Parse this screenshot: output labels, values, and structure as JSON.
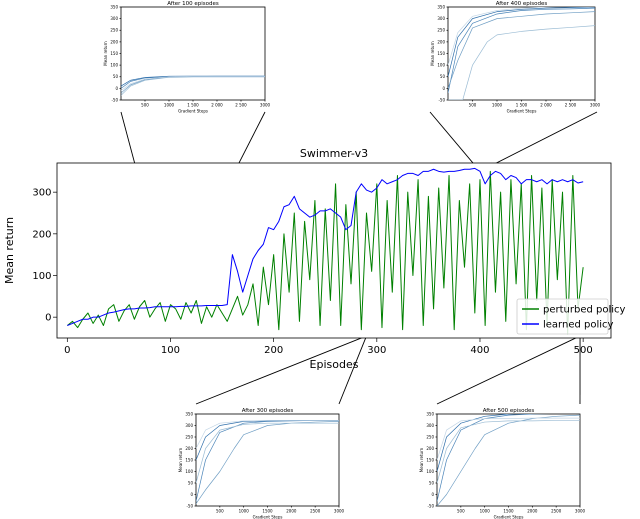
{
  "chart_data": [
    {
      "id": "main",
      "type": "line",
      "title": "Swimmer-v3",
      "xlabel": "Episodes",
      "ylabel": "Mean return",
      "xlim": [
        -10,
        527
      ],
      "ylim": [
        -50,
        370
      ],
      "xticks": [
        0,
        100,
        200,
        300,
        400,
        500
      ],
      "yticks": [
        0,
        100,
        200,
        300
      ],
      "grid": false,
      "legend": "bottom-right",
      "series": [
        {
          "name": "perturbed policy",
          "color": "#008000",
          "x": [
            0,
            5,
            10,
            15,
            20,
            25,
            30,
            35,
            40,
            45,
            50,
            55,
            60,
            65,
            70,
            75,
            80,
            85,
            90,
            95,
            100,
            105,
            110,
            115,
            120,
            125,
            130,
            135,
            140,
            145,
            150,
            155,
            160,
            165,
            170,
            175,
            180,
            185,
            190,
            195,
            200,
            205,
            210,
            215,
            220,
            225,
            230,
            235,
            240,
            245,
            250,
            255,
            260,
            265,
            270,
            275,
            280,
            285,
            290,
            295,
            300,
            305,
            310,
            315,
            320,
            325,
            330,
            335,
            340,
            345,
            350,
            355,
            360,
            365,
            370,
            375,
            380,
            385,
            390,
            395,
            400,
            405,
            410,
            415,
            420,
            425,
            430,
            435,
            440,
            445,
            450,
            455,
            460,
            465,
            470,
            475,
            480,
            485,
            490,
            495,
            500
          ],
          "values": [
            -20,
            -10,
            -25,
            -5,
            10,
            -15,
            5,
            -20,
            20,
            30,
            -10,
            15,
            30,
            -5,
            25,
            40,
            0,
            20,
            35,
            -10,
            30,
            20,
            -5,
            35,
            10,
            40,
            -15,
            25,
            0,
            30,
            10,
            -10,
            20,
            50,
            5,
            30,
            80,
            -20,
            120,
            30,
            150,
            -30,
            200,
            60,
            250,
            -10,
            230,
            90,
            280,
            -20,
            260,
            40,
            320,
            -20,
            270,
            80,
            300,
            -30,
            250,
            110,
            320,
            -25,
            280,
            60,
            340,
            -30,
            300,
            100,
            330,
            -20,
            290,
            20,
            310,
            70,
            340,
            -30,
            280,
            120,
            320,
            10,
            330,
            -20,
            350,
            60,
            300,
            -10,
            330,
            80,
            320,
            -30,
            340,
            40,
            310,
            -20,
            330,
            90,
            300,
            -40,
            340,
            20,
            120
          ]
        },
        {
          "name": "learned policy",
          "color": "#0000ff",
          "x": [
            0,
            5,
            10,
            15,
            20,
            25,
            30,
            35,
            40,
            45,
            50,
            55,
            60,
            65,
            70,
            75,
            80,
            85,
            90,
            95,
            100,
            105,
            110,
            115,
            120,
            125,
            130,
            135,
            140,
            145,
            150,
            155,
            160,
            165,
            170,
            175,
            180,
            185,
            190,
            195,
            200,
            205,
            210,
            215,
            220,
            225,
            230,
            235,
            240,
            245,
            250,
            255,
            260,
            265,
            270,
            275,
            280,
            285,
            290,
            295,
            300,
            305,
            310,
            315,
            320,
            325,
            330,
            335,
            340,
            345,
            350,
            355,
            360,
            365,
            370,
            375,
            380,
            385,
            390,
            395,
            400,
            405,
            410,
            415,
            420,
            425,
            430,
            435,
            440,
            445,
            450,
            455,
            460,
            465,
            470,
            475,
            480,
            485,
            490,
            495,
            500
          ],
          "values": [
            -20,
            -15,
            -10,
            -5,
            -5,
            0,
            0,
            5,
            10,
            12,
            15,
            18,
            20,
            20,
            22,
            22,
            23,
            25,
            25,
            25,
            25,
            25,
            26,
            26,
            27,
            27,
            27,
            28,
            28,
            28,
            28,
            30,
            150,
            110,
            60,
            100,
            140,
            160,
            175,
            215,
            210,
            230,
            265,
            270,
            290,
            260,
            250,
            240,
            245,
            255,
            255,
            260,
            250,
            240,
            210,
            220,
            300,
            320,
            305,
            300,
            310,
            330,
            320,
            325,
            330,
            340,
            345,
            345,
            340,
            350,
            350,
            355,
            350,
            348,
            350,
            350,
            352,
            355,
            355,
            357,
            350,
            320,
            340,
            350,
            345,
            330,
            340,
            335,
            320,
            330,
            330,
            325,
            330,
            320,
            330,
            325,
            330,
            325,
            330,
            322,
            325
          ]
        }
      ]
    },
    {
      "id": "inset-100",
      "type": "line",
      "title": "After 100 episodes",
      "xlabel": "Gradient Steps",
      "ylabel": "Mean return",
      "xlim": [
        0,
        3000
      ],
      "ylim": [
        -50,
        350
      ],
      "xticks": [
        500,
        1000,
        1500,
        2000,
        2500,
        3000
      ],
      "xtick_labels": [
        "500",
        "1000",
        "1 500",
        "2 000",
        "2 500",
        "3000"
      ],
      "yticks": [
        -50,
        0,
        50,
        100,
        150,
        200,
        250,
        300,
        350
      ],
      "series": [
        {
          "x": [
            0,
            200,
            500,
            1000,
            1500,
            2000,
            2500,
            3000
          ],
          "values": [
            -30,
            10,
            35,
            48,
            50,
            50,
            50,
            50
          ],
          "color": "#9bbcd4"
        },
        {
          "x": [
            0,
            200,
            500,
            1000,
            1500,
            2000,
            2500,
            3000
          ],
          "values": [
            -20,
            15,
            38,
            49,
            50,
            50,
            50,
            50
          ],
          "color": "#6f9ec4"
        },
        {
          "x": [
            0,
            200,
            500,
            1000,
            1500,
            2000,
            2500,
            3000
          ],
          "values": [
            0,
            30,
            45,
            50,
            51,
            52,
            52,
            52
          ],
          "color": "#4a84b8"
        },
        {
          "x": [
            0,
            200,
            500,
            1000,
            1500,
            2000,
            2500,
            3000
          ],
          "values": [
            10,
            35,
            47,
            52,
            53,
            53,
            53,
            53
          ],
          "color": "#2f6fab"
        },
        {
          "x": [
            0,
            200,
            500,
            1000,
            1500,
            2000,
            2500,
            3000
          ],
          "values": [
            -10,
            20,
            40,
            50,
            52,
            52,
            52,
            52
          ],
          "color": "#c3d6e6"
        }
      ]
    },
    {
      "id": "inset-400",
      "type": "line",
      "title": "After 400 episodes",
      "xlabel": "Gradient Steps",
      "ylabel": "Mean return",
      "xlim": [
        0,
        3000
      ],
      "ylim": [
        -50,
        350
      ],
      "xticks": [
        500,
        1000,
        1500,
        2000,
        2500,
        3000
      ],
      "xtick_labels": [
        "500",
        "1000",
        "1 500",
        "2 000",
        "2 500",
        "3000"
      ],
      "yticks": [
        -50,
        0,
        50,
        100,
        150,
        200,
        250,
        300,
        350
      ],
      "series": [
        {
          "x": [
            0,
            200,
            500,
            1000,
            1500,
            2000,
            2500,
            3000
          ],
          "values": [
            50,
            220,
            300,
            330,
            340,
            345,
            348,
            350
          ],
          "color": "#2f6fab"
        },
        {
          "x": [
            0,
            200,
            500,
            1000,
            1500,
            2000,
            2500,
            3000
          ],
          "values": [
            -20,
            180,
            280,
            320,
            335,
            340,
            342,
            345
          ],
          "color": "#4a84b8"
        },
        {
          "x": [
            0,
            200,
            500,
            1000,
            1500,
            2000,
            2500,
            3000
          ],
          "values": [
            0,
            120,
            260,
            300,
            310,
            320,
            325,
            330
          ],
          "color": "#6f9ec4"
        },
        {
          "x": [
            0,
            300,
            500,
            800,
            1000,
            1500,
            2000,
            2500,
            3000
          ],
          "values": [
            -50,
            -50,
            100,
            200,
            230,
            245,
            255,
            262,
            270
          ],
          "color": "#9bbcd4"
        },
        {
          "x": [
            0,
            200,
            500,
            1000,
            1500,
            2000,
            2500,
            3000
          ],
          "values": [
            100,
            240,
            310,
            335,
            345,
            350,
            352,
            355
          ],
          "color": "#c3d6e6"
        }
      ]
    },
    {
      "id": "inset-300",
      "type": "line",
      "title": "After 300 episodes",
      "xlabel": "Gradient Steps",
      "ylabel": "Mean return",
      "xlim": [
        0,
        3000
      ],
      "ylim": [
        -50,
        350
      ],
      "xticks": [
        500,
        1000,
        1500,
        2000,
        2500,
        3000
      ],
      "xtick_labels": [
        "500",
        "1000",
        "1500",
        "2000",
        "2500",
        "3000"
      ],
      "yticks": [
        -50,
        0,
        50,
        100,
        150,
        200,
        250,
        300,
        350
      ],
      "series": [
        {
          "x": [
            0,
            200,
            500,
            1000,
            1500,
            2000,
            2500,
            3000
          ],
          "values": [
            150,
            250,
            300,
            318,
            320,
            322,
            322,
            322
          ],
          "color": "#2f6fab"
        },
        {
          "x": [
            0,
            200,
            500,
            1000,
            1500,
            2000,
            2500,
            3000
          ],
          "values": [
            -30,
            150,
            270,
            310,
            318,
            320,
            322,
            322
          ],
          "color": "#4a84b8"
        },
        {
          "x": [
            0,
            200,
            500,
            800,
            1000,
            1500,
            2000,
            2500,
            3000
          ],
          "values": [
            -40,
            20,
            100,
            200,
            260,
            300,
            310,
            315,
            318
          ],
          "color": "#6f9ec4"
        },
        {
          "x": [
            0,
            200,
            500,
            1000,
            1500,
            2000,
            2500,
            3000
          ],
          "values": [
            50,
            200,
            280,
            305,
            310,
            310,
            310,
            310
          ],
          "color": "#9bbcd4"
        },
        {
          "x": [
            0,
            200,
            500,
            1000,
            1500,
            2000,
            2500,
            3000
          ],
          "values": [
            200,
            280,
            310,
            320,
            322,
            322,
            322,
            322
          ],
          "color": "#c3d6e6"
        }
      ]
    },
    {
      "id": "inset-500",
      "type": "line",
      "title": "After 500 episodes",
      "xlabel": "Gradient Steps",
      "ylabel": "Mean return",
      "xlim": [
        0,
        3000
      ],
      "ylim": [
        -50,
        350
      ],
      "xticks": [
        500,
        1000,
        1500,
        2000,
        2500,
        3000
      ],
      "xtick_labels": [
        "500",
        "1000",
        "1500",
        "2000",
        "2500",
        "3000"
      ],
      "yticks": [
        -50,
        0,
        50,
        100,
        150,
        200,
        250,
        300,
        350
      ],
      "series": [
        {
          "x": [
            0,
            200,
            500,
            1000,
            1500,
            2000,
            2500,
            3000
          ],
          "values": [
            100,
            250,
            310,
            340,
            350,
            355,
            356,
            356
          ],
          "color": "#2f6fab"
        },
        {
          "x": [
            0,
            200,
            500,
            1000,
            1500,
            2000,
            2500,
            3000
          ],
          "values": [
            -30,
            150,
            280,
            330,
            345,
            350,
            352,
            352
          ],
          "color": "#4a84b8"
        },
        {
          "x": [
            0,
            200,
            500,
            800,
            1000,
            1500,
            2000,
            2500,
            3000
          ],
          "values": [
            -50,
            0,
            100,
            200,
            260,
            310,
            330,
            340,
            345
          ],
          "color": "#6f9ec4"
        },
        {
          "x": [
            0,
            200,
            500,
            1000,
            1500,
            2000,
            2500,
            3000
          ],
          "values": [
            50,
            200,
            290,
            315,
            320,
            320,
            322,
            322
          ],
          "color": "#9bbcd4"
        },
        {
          "x": [
            0,
            200,
            500,
            1000,
            1500,
            2000,
            2500,
            3000
          ],
          "values": [
            150,
            280,
            320,
            330,
            330,
            332,
            332,
            332
          ],
          "color": "#c3d6e6"
        }
      ]
    }
  ]
}
